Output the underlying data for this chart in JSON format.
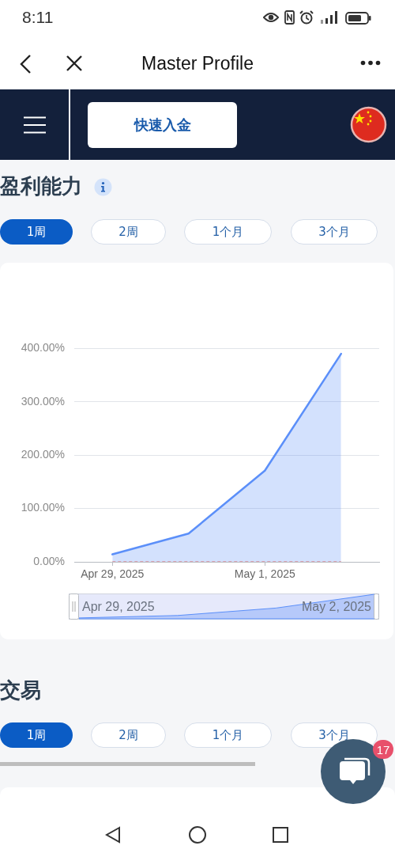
{
  "chart_data": {
    "type": "area",
    "title": "盈利能力",
    "x": [
      "2025-04-29",
      "2025-04-30",
      "2025-05-01",
      "2025-05-02"
    ],
    "series": [
      {
        "color": "#5b8ff9",
        "values": [
          14,
          53,
          171,
          390
        ]
      },
      {
        "type": "line",
        "color": "#e06666",
        "line_style": "dashed",
        "values": [
          0,
          0,
          0,
          0
        ]
      }
    ],
    "xlim": [
      "2025-04-28T12:00",
      "2025-05-02T12:00"
    ],
    "xticks": [
      {
        "value": "2025-04-29",
        "label": "Apr 29, 2025"
      },
      {
        "value": "2025-05-01",
        "label": "May 1, 2025"
      }
    ],
    "ylim": [
      0,
      400
    ],
    "yticks": [
      {
        "value": 0,
        "label": "0.00%"
      },
      {
        "value": 100,
        "label": "100.00%"
      },
      {
        "value": 200,
        "label": "200.00%"
      },
      {
        "value": 300,
        "label": "300.00%"
      },
      {
        "value": 400,
        "label": "400.00%"
      }
    ],
    "grid": "y",
    "marker": "none",
    "annotations": [
      "8:11",
      "Master Profile",
      "快速入金",
      "1周",
      "2周",
      "1个月",
      "3个月",
      "Apr 29, 2025",
      "May 2, 2025",
      "交易",
      "1周",
      "2周",
      "1个月",
      "3个月",
      "17"
    ]
  }
}
